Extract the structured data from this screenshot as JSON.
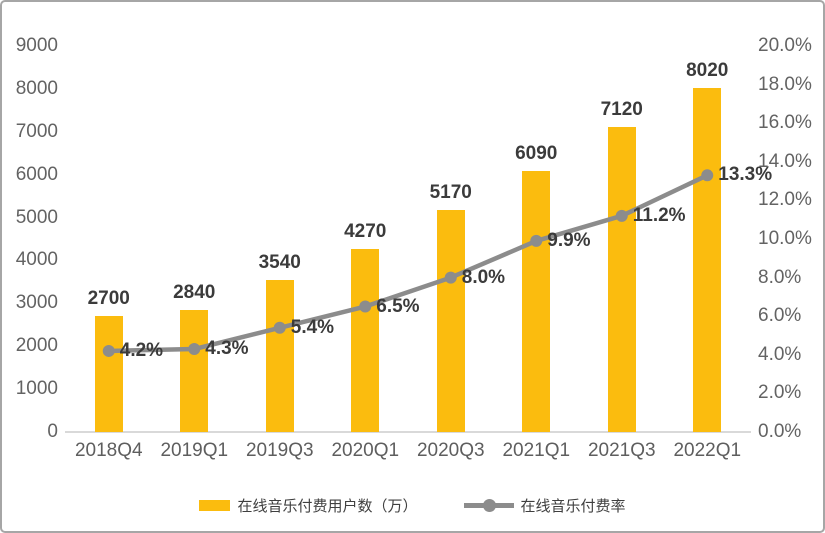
{
  "chart_data": {
    "type": "combo-bar-line",
    "title": "",
    "categories": [
      "2018Q4",
      "2019Q1",
      "2019Q3",
      "2020Q1",
      "2020Q3",
      "2021Q1",
      "2021Q3",
      "2022Q1"
    ],
    "series": [
      {
        "name": "在线音乐付费用户数（万）",
        "type": "bar",
        "axis": "left",
        "color": "#FBBC0E",
        "values": [
          2700,
          2840,
          3540,
          4270,
          5170,
          6090,
          7120,
          8020
        ],
        "labels": [
          "2700",
          "2840",
          "3540",
          "4270",
          "5170",
          "6090",
          "7120",
          "8020"
        ]
      },
      {
        "name": "在线音乐付费率",
        "type": "line",
        "axis": "right",
        "color": "#8C8C8C",
        "values": [
          4.2,
          4.3,
          5.4,
          6.5,
          8.0,
          9.9,
          11.2,
          13.3
        ],
        "labels": [
          "4.2%",
          "4.3%",
          "5.4%",
          "6.5%",
          "8.0%",
          "9.9%",
          "11.2%",
          "13.3%"
        ]
      }
    ],
    "left_axis": {
      "min": 0,
      "max": 9000,
      "step": 1000,
      "ticks": [
        "9000",
        "8000",
        "7000",
        "6000",
        "5000",
        "4000",
        "3000",
        "2000",
        "1000",
        "0"
      ],
      "tick_values": [
        9000,
        8000,
        7000,
        6000,
        5000,
        4000,
        3000,
        2000,
        1000,
        0
      ]
    },
    "right_axis": {
      "min": 0,
      "max": 20,
      "step": 2,
      "ticks": [
        "20.0%",
        "18.0%",
        "16.0%",
        "14.0%",
        "12.0%",
        "10.0%",
        "8.0%",
        "6.0%",
        "4.0%",
        "2.0%",
        "0.0%"
      ],
      "tick_values": [
        20,
        18,
        16,
        14,
        12,
        10,
        8,
        6,
        4,
        2,
        0
      ]
    },
    "legend_position": "bottom",
    "grid": false,
    "colors": {
      "bar": "#FBBC0E",
      "line": "#8C8C8C",
      "data_label": "#3B3B3B",
      "tick_label": "#636363",
      "axis_line": "#D9D9D9",
      "frame_border": "#A6A6A6",
      "background": "#FFFFFF"
    }
  }
}
